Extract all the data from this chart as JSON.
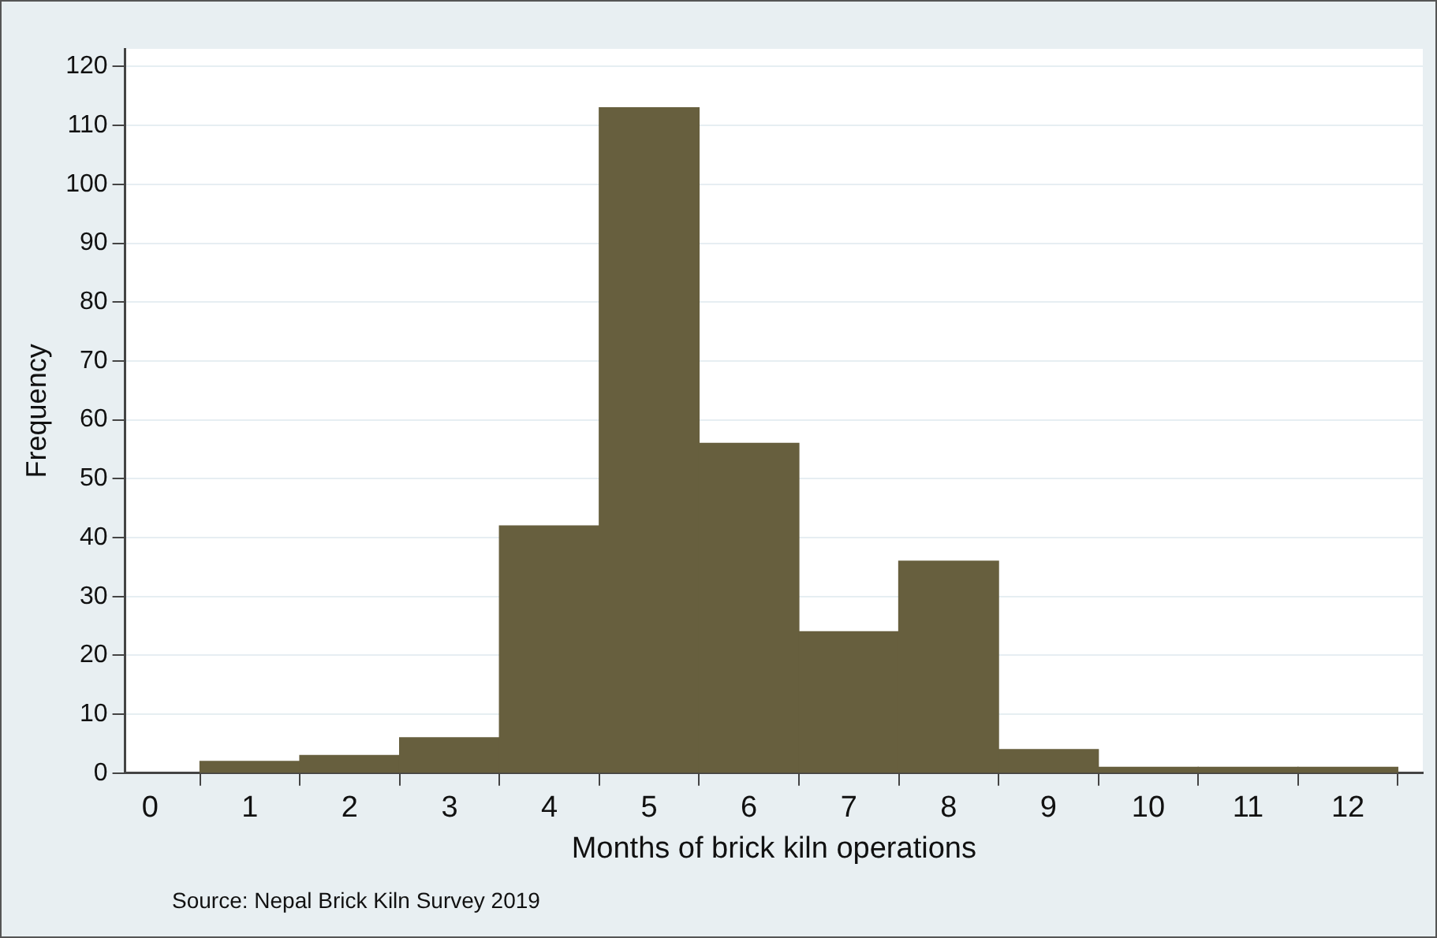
{
  "chart_data": {
    "type": "histogram",
    "xlabel": "Months of brick kiln operations",
    "ylabel": "Frequency",
    "bins": [
      0.5,
      1.5,
      2.5,
      3.5,
      4.5,
      5.5,
      6.5,
      7.5,
      8.5,
      9.5,
      10.5,
      11.5,
      12.5
    ],
    "values": [
      2,
      3,
      6,
      42,
      113,
      56,
      24,
      36,
      4,
      1,
      1,
      1
    ],
    "color": "#675f3e",
    "xlim": [
      -0.25,
      12.75
    ],
    "xticks": [
      0,
      1,
      2,
      3,
      4,
      5,
      6,
      7,
      8,
      9,
      10,
      11,
      12
    ],
    "ylim": [
      0,
      123
    ],
    "yticks": [
      0,
      10,
      20,
      30,
      40,
      50,
      60,
      70,
      80,
      90,
      100,
      110,
      120
    ],
    "grid": "y",
    "legend": false,
    "annotations": [
      "Source: Nepal Brick Kiln Survey 2019"
    ]
  }
}
